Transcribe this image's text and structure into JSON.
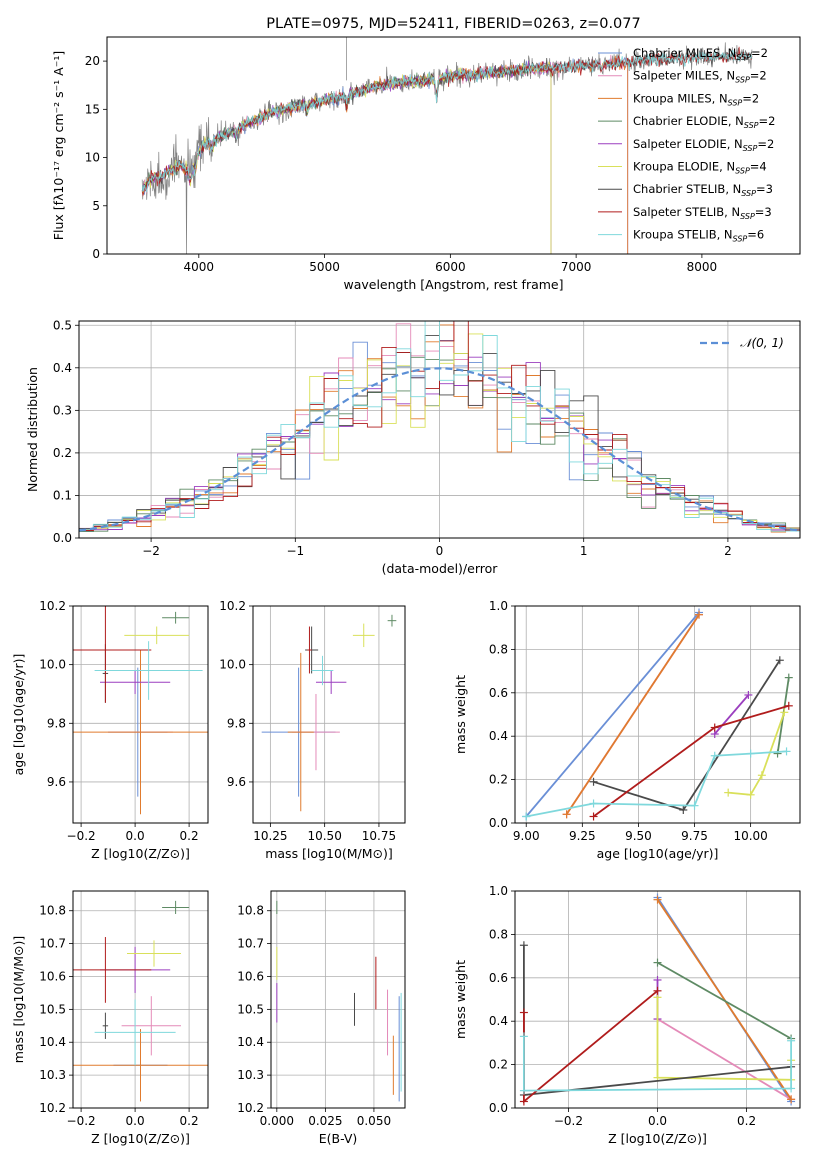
{
  "figure_title": "PLATE=0975, MJD=52411, FIBERID=0263, z=0.077",
  "colors": {
    "Chabrier MILES": "#6a8fd6",
    "Salpeter MILES": "#e48ab8",
    "Kroupa MILES": "#e07b2e",
    "Chabrier ELODIE": "#5e8a64",
    "Salpeter ELODIE": "#9b3fbf",
    "Kroupa ELODIE": "#d9e05a",
    "Chabrier STELIB": "#4a4a4a",
    "Salpeter STELIB": "#b01c1c",
    "Kroupa STELIB": "#7fd8dc"
  },
  "chart_data": [
    {
      "id": "spectrum",
      "type": "line",
      "title": "PLATE=0975, MJD=52411, FIBERID=0263, z=0.077",
      "xlabel": "wavelength [Angstrom, rest frame]",
      "ylabel": "Flux [fλ10⁻¹⁷ erg cm⁻² s⁻¹ A⁻¹]",
      "xlim": [
        3270,
        8780
      ],
      "ylim": [
        0,
        22.5
      ],
      "xticks": [
        4000,
        5000,
        6000,
        7000,
        8000
      ],
      "yticks": [
        0,
        5,
        10,
        15,
        20
      ],
      "data_series": {
        "name": "data",
        "color": "#808080",
        "x": [
          3550,
          3600,
          3650,
          3700,
          3750,
          3800,
          3850,
          3900,
          3950,
          4000,
          4050,
          4100,
          4150,
          4200,
          4300,
          4400,
          4500,
          4600,
          4700,
          4800,
          4900,
          5000,
          5100,
          5200,
          5300,
          5400,
          5500,
          5600,
          5700,
          5800,
          5900,
          6000,
          6100,
          6200,
          6300,
          6400,
          6500,
          6600,
          6700,
          6800,
          6900,
          7000,
          7100,
          7200,
          7300,
          7400,
          7500,
          7600,
          7700,
          7800,
          7900,
          8000,
          8100,
          8200,
          8300,
          8400
        ],
        "y": [
          6.5,
          7.5,
          8.0,
          7.8,
          8.6,
          8.8,
          9.3,
          8.6,
          9.8,
          10.5,
          11.5,
          11.5,
          12.0,
          12.3,
          13.0,
          13.6,
          14.2,
          14.8,
          15.0,
          15.4,
          15.6,
          16.0,
          16.2,
          16.6,
          17.0,
          17.4,
          17.6,
          17.8,
          17.9,
          18.0,
          18.2,
          18.4,
          18.6,
          18.6,
          18.8,
          18.9,
          19.0,
          19.2,
          19.3,
          19.3,
          19.4,
          19.5,
          19.6,
          19.7,
          19.8,
          19.9,
          20.0,
          20.1,
          20.2,
          20.2,
          20.3,
          20.4,
          20.4,
          20.5,
          20.5,
          20.6
        ]
      },
      "legend": [
        "Chabrier MILES, N_SSP=2",
        "Salpeter MILES, N_SSP=2",
        "Kroupa MILES, N_SSP=2",
        "Chabrier ELODIE, N_SSP=2",
        "Salpeter ELODIE, N_SSP=2",
        "Kroupa ELODIE, N_SSP=4",
        "Chabrier STELIB, N_SSP=3",
        "Salpeter STELIB, N_SSP=3",
        "Kroupa STELIB, N_SSP=6"
      ],
      "legend_loc": "right",
      "series_ranges": [
        {
          "name": "Chabrier MILES",
          "xmin": 3550,
          "xmax": 7410
        },
        {
          "name": "Salpeter MILES",
          "xmin": 3550,
          "xmax": 7410
        },
        {
          "name": "Kroupa MILES",
          "xmin": 3550,
          "xmax": 7410
        },
        {
          "name": "Chabrier ELODIE",
          "xmin": 3550,
          "xmax": 6800
        },
        {
          "name": "Salpeter ELODIE",
          "xmin": 3550,
          "xmax": 6800
        },
        {
          "name": "Kroupa ELODIE",
          "xmin": 3550,
          "xmax": 6800
        },
        {
          "name": "Chabrier STELIB",
          "xmin": 3550,
          "xmax": 8400
        },
        {
          "name": "Salpeter STELIB",
          "xmin": 3550,
          "xmax": 8400
        },
        {
          "name": "Kroupa STELIB",
          "xmin": 3550,
          "xmax": 8400
        }
      ]
    },
    {
      "id": "residual-hist",
      "type": "line",
      "xlabel": "(data-model)/error",
      "ylabel": "Normed distribution",
      "xlim": [
        -2.5,
        2.5
      ],
      "ylim": [
        0,
        0.51
      ],
      "xticks": [
        -2,
        -1,
        0,
        1,
        2
      ],
      "yticks": [
        0.0,
        0.1,
        0.2,
        0.3,
        0.4,
        0.5
      ],
      "legend": [
        "𝒩(0, 1)"
      ],
      "legend_loc": "upper right",
      "bin_width": 0.1,
      "bin_range": [
        -2.5,
        2.5
      ]
    },
    {
      "id": "age-vs-z",
      "type": "scatter",
      "xlabel": "Z [log10(Z/Z⊙)]",
      "ylabel": "age  [log10(age/yr)]",
      "xlim": [
        -0.23,
        0.27
      ],
      "ylim": [
        9.46,
        10.2
      ],
      "xticks": [
        -0.2,
        0.0,
        0.2
      ],
      "yticks": [
        9.6,
        9.8,
        10.0,
        10.2
      ],
      "points": [
        {
          "name": "Chabrier MILES",
          "x": 0.01,
          "y": 9.77,
          "xerr": 0.11,
          "yerr": 0.22
        },
        {
          "name": "Salpeter MILES",
          "x": 0.02,
          "y": 9.77,
          "xerr": 0.12,
          "yerr": 0.2
        },
        {
          "name": "Kroupa MILES",
          "x": 0.02,
          "y": 9.77,
          "xerr": 0.25,
          "yerr": 0.28
        },
        {
          "name": "Chabrier ELODIE",
          "x": 0.15,
          "y": 10.16,
          "xerr": 0.05,
          "yerr": 0.02
        },
        {
          "name": "Salpeter ELODIE",
          "x": 0.0,
          "y": 9.94,
          "xerr": 0.13,
          "yerr": 0.04
        },
        {
          "name": "Kroupa ELODIE",
          "x": 0.08,
          "y": 10.1,
          "xerr": 0.12,
          "yerr": 0.03
        },
        {
          "name": "Chabrier STELIB",
          "x": -0.11,
          "y": 9.97,
          "xerr": 0.01,
          "yerr": 0.1
        },
        {
          "name": "Salpeter STELIB",
          "x": -0.11,
          "y": 10.05,
          "xerr": 0.17,
          "yerr": 0.18
        },
        {
          "name": "Kroupa STELIB",
          "x": 0.05,
          "y": 9.98,
          "xerr": 0.2,
          "yerr": 0.1
        }
      ]
    },
    {
      "id": "age-vs-mass",
      "type": "scatter",
      "xlabel": "mass [log10(M/M⊙)]",
      "ylabel": "",
      "xlim": [
        10.17,
        10.87
      ],
      "ylim": [
        9.46,
        10.2
      ],
      "xticks": [
        10.25,
        10.5,
        10.75
      ],
      "yticks": [
        9.6,
        9.8,
        10.0,
        10.2
      ],
      "points": [
        {
          "name": "Chabrier MILES",
          "x": 10.38,
          "y": 9.77,
          "xerr": 0.17,
          "yerr": 0.22
        },
        {
          "name": "Salpeter MILES",
          "x": 10.46,
          "y": 9.77,
          "xerr": 0.11,
          "yerr": 0.13
        },
        {
          "name": "Kroupa MILES",
          "x": 10.39,
          "y": 9.77,
          "xerr": 0.06,
          "yerr": 0.27
        },
        {
          "name": "Chabrier ELODIE",
          "x": 10.81,
          "y": 10.15,
          "xerr": 0.02,
          "yerr": 0.02
        },
        {
          "name": "Salpeter ELODIE",
          "x": 10.53,
          "y": 9.94,
          "xerr": 0.07,
          "yerr": 0.04
        },
        {
          "name": "Kroupa ELODIE",
          "x": 10.68,
          "y": 10.1,
          "xerr": 0.05,
          "yerr": 0.04
        },
        {
          "name": "Chabrier STELIB",
          "x": 10.44,
          "y": 10.05,
          "xerr": 0.03,
          "yerr": 0.08
        },
        {
          "name": "Salpeter STELIB",
          "x": 10.43,
          "y": 10.05,
          "xerr": 0.01,
          "yerr": 0.08
        },
        {
          "name": "Kroupa STELIB",
          "x": 10.49,
          "y": 9.98,
          "xerr": 0.05,
          "yerr": 0.05
        }
      ]
    },
    {
      "id": "mass-weight-vs-age",
      "type": "line",
      "xlabel": "age  [log10(age/yr)]",
      "ylabel": "mass weight",
      "xlim": [
        8.95,
        10.22
      ],
      "ylim": [
        0,
        1.0
      ],
      "xticks": [
        9.0,
        9.25,
        9.5,
        9.75,
        10.0
      ],
      "yticks": [
        0.0,
        0.2,
        0.4,
        0.6,
        0.8,
        1.0
      ],
      "series": [
        {
          "name": "Chabrier MILES",
          "x": [
            9.0,
            9.77
          ],
          "y": [
            0.03,
            0.97
          ]
        },
        {
          "name": "Salpeter MILES",
          "x": [
            9.18,
            9.77
          ],
          "y": [
            0.04,
            0.96
          ]
        },
        {
          "name": "Kroupa MILES",
          "x": [
            9.18,
            9.77
          ],
          "y": [
            0.04,
            0.96
          ]
        },
        {
          "name": "Chabrier ELODIE",
          "x": [
            10.12,
            10.17
          ],
          "y": [
            0.32,
            0.67
          ]
        },
        {
          "name": "Salpeter ELODIE",
          "x": [
            9.84,
            9.99
          ],
          "y": [
            0.41,
            0.59
          ]
        },
        {
          "name": "Kroupa ELODIE",
          "x": [
            9.9,
            10.0,
            10.05,
            10.15
          ],
          "y": [
            0.14,
            0.13,
            0.22,
            0.51
          ]
        },
        {
          "name": "Chabrier STELIB",
          "x": [
            9.3,
            9.7,
            10.13
          ],
          "y": [
            0.19,
            0.06,
            0.75
          ]
        },
        {
          "name": "Salpeter STELIB",
          "x": [
            9.3,
            9.84,
            10.17
          ],
          "y": [
            0.03,
            0.44,
            0.54
          ]
        },
        {
          "name": "Kroupa STELIB",
          "x": [
            9.0,
            9.3,
            9.75,
            9.84,
            10.0,
            10.16
          ],
          "y": [
            0.03,
            0.09,
            0.08,
            0.31,
            0.32,
            0.33
          ]
        }
      ]
    },
    {
      "id": "mass-vs-z",
      "type": "scatter",
      "xlabel": "Z [log10(Z/Z⊙)]",
      "ylabel": "mass [log10(M/M⊙)]",
      "xlim": [
        -0.23,
        0.27
      ],
      "ylim": [
        10.2,
        10.86
      ],
      "xticks": [
        -0.2,
        0.0,
        0.2
      ],
      "yticks": [
        10.2,
        10.3,
        10.4,
        10.5,
        10.6,
        10.7,
        10.8
      ],
      "points": [
        {
          "name": "Chabrier MILES",
          "x": 0.02,
          "y": 10.33,
          "xerr": 0.1,
          "yerr": 0.11
        },
        {
          "name": "Salpeter MILES",
          "x": 0.06,
          "y": 10.45,
          "xerr": 0.11,
          "yerr": 0.09
        },
        {
          "name": "Kroupa MILES",
          "x": 0.02,
          "y": 10.33,
          "xerr": 0.25,
          "yerr": 0.11
        },
        {
          "name": "Chabrier ELODIE",
          "x": 0.15,
          "y": 10.81,
          "xerr": 0.05,
          "yerr": 0.02
        },
        {
          "name": "Salpeter ELODIE",
          "x": 0.0,
          "y": 10.62,
          "xerr": 0.13,
          "yerr": 0.07
        },
        {
          "name": "Kroupa ELODIE",
          "x": 0.07,
          "y": 10.67,
          "xerr": 0.1,
          "yerr": 0.04
        },
        {
          "name": "Chabrier STELIB",
          "x": -0.11,
          "y": 10.45,
          "xerr": 0.01,
          "yerr": 0.04
        },
        {
          "name": "Salpeter STELIB",
          "x": -0.11,
          "y": 10.62,
          "xerr": 0.17,
          "yerr": 0.1
        },
        {
          "name": "Kroupa STELIB",
          "x": 0.0,
          "y": 10.43,
          "xerr": 0.15,
          "yerr": 0.1
        }
      ]
    },
    {
      "id": "mass-vs-ebv",
      "type": "scatter",
      "xlabel": "E(B-V)",
      "ylabel": "",
      "xlim": [
        -0.003,
        0.066
      ],
      "ylim": [
        10.2,
        10.86
      ],
      "xticks": [
        0.0,
        0.025,
        0.05
      ],
      "yticks": [
        10.2,
        10.3,
        10.4,
        10.5,
        10.6,
        10.7,
        10.8
      ],
      "points": [
        {
          "name": "Chabrier MILES",
          "x": 0.063,
          "y": 10.38,
          "xerr": 0.0,
          "yerr": 0.16
        },
        {
          "name": "Salpeter MILES",
          "x": 0.057,
          "y": 10.46,
          "xerr": 0.0,
          "yerr": 0.1
        },
        {
          "name": "Kroupa MILES",
          "x": 0.06,
          "y": 10.33,
          "xerr": 0.0,
          "yerr": 0.09
        },
        {
          "name": "Chabrier ELODIE",
          "x": 0.0,
          "y": 10.81,
          "xerr": 0.0,
          "yerr": 0.02
        },
        {
          "name": "Salpeter ELODIE",
          "x": 0.0,
          "y": 10.52,
          "xerr": 0.0,
          "yerr": 0.06
        },
        {
          "name": "Kroupa ELODIE",
          "x": 0.0,
          "y": 10.64,
          "xerr": 0.0,
          "yerr": 0.05
        },
        {
          "name": "Chabrier STELIB",
          "x": 0.04,
          "y": 10.5,
          "xerr": 0.0,
          "yerr": 0.05
        },
        {
          "name": "Salpeter STELIB",
          "x": 0.051,
          "y": 10.58,
          "xerr": 0.0,
          "yerr": 0.08
        },
        {
          "name": "Kroupa STELIB",
          "x": 0.064,
          "y": 10.4,
          "xerr": 0.0,
          "yerr": 0.15
        }
      ]
    },
    {
      "id": "mass-weight-vs-z",
      "type": "line",
      "xlabel": "Z [log10(Z/Z⊙)]",
      "ylabel": "mass weight",
      "xlim": [
        -0.32,
        0.32
      ],
      "ylim": [
        0,
        1.0
      ],
      "xticks": [
        -0.2,
        0.0,
        0.2
      ],
      "yticks": [
        0.0,
        0.2,
        0.4,
        0.6,
        0.8,
        1.0
      ],
      "series": [
        {
          "name": "Chabrier MILES",
          "x": [
            0.0,
            0.3
          ],
          "y": [
            0.97,
            0.03
          ]
        },
        {
          "name": "Salpeter MILES",
          "x": [
            0.0,
            0.3
          ],
          "y": [
            0.41,
            0.04
          ]
        },
        {
          "name": "Kroupa MILES",
          "x": [
            0.0,
            0.3
          ],
          "y": [
            0.96,
            0.04
          ]
        },
        {
          "name": "Chabrier ELODIE",
          "x": [
            0.0,
            0.3
          ],
          "y": [
            0.67,
            0.32
          ]
        },
        {
          "name": "Salpeter ELODIE",
          "x": [
            0.0,
            0.0
          ],
          "y": [
            0.41,
            0.59
          ]
        },
        {
          "name": "Kroupa ELODIE",
          "x": [
            0.0,
            0.0,
            0.3,
            0.3
          ],
          "y": [
            0.51,
            0.14,
            0.13,
            0.22
          ]
        },
        {
          "name": "Chabrier STELIB",
          "x": [
            -0.3,
            -0.3,
            0.3
          ],
          "y": [
            0.75,
            0.06,
            0.19
          ]
        },
        {
          "name": "Salpeter STELIB",
          "x": [
            -0.3,
            -0.3,
            0.0
          ],
          "y": [
            0.44,
            0.03,
            0.54
          ]
        },
        {
          "name": "Kroupa STELIB",
          "x": [
            -0.3,
            -0.3,
            0.3,
            0.3
          ],
          "y": [
            0.33,
            0.08,
            0.09,
            0.31
          ]
        }
      ]
    }
  ]
}
